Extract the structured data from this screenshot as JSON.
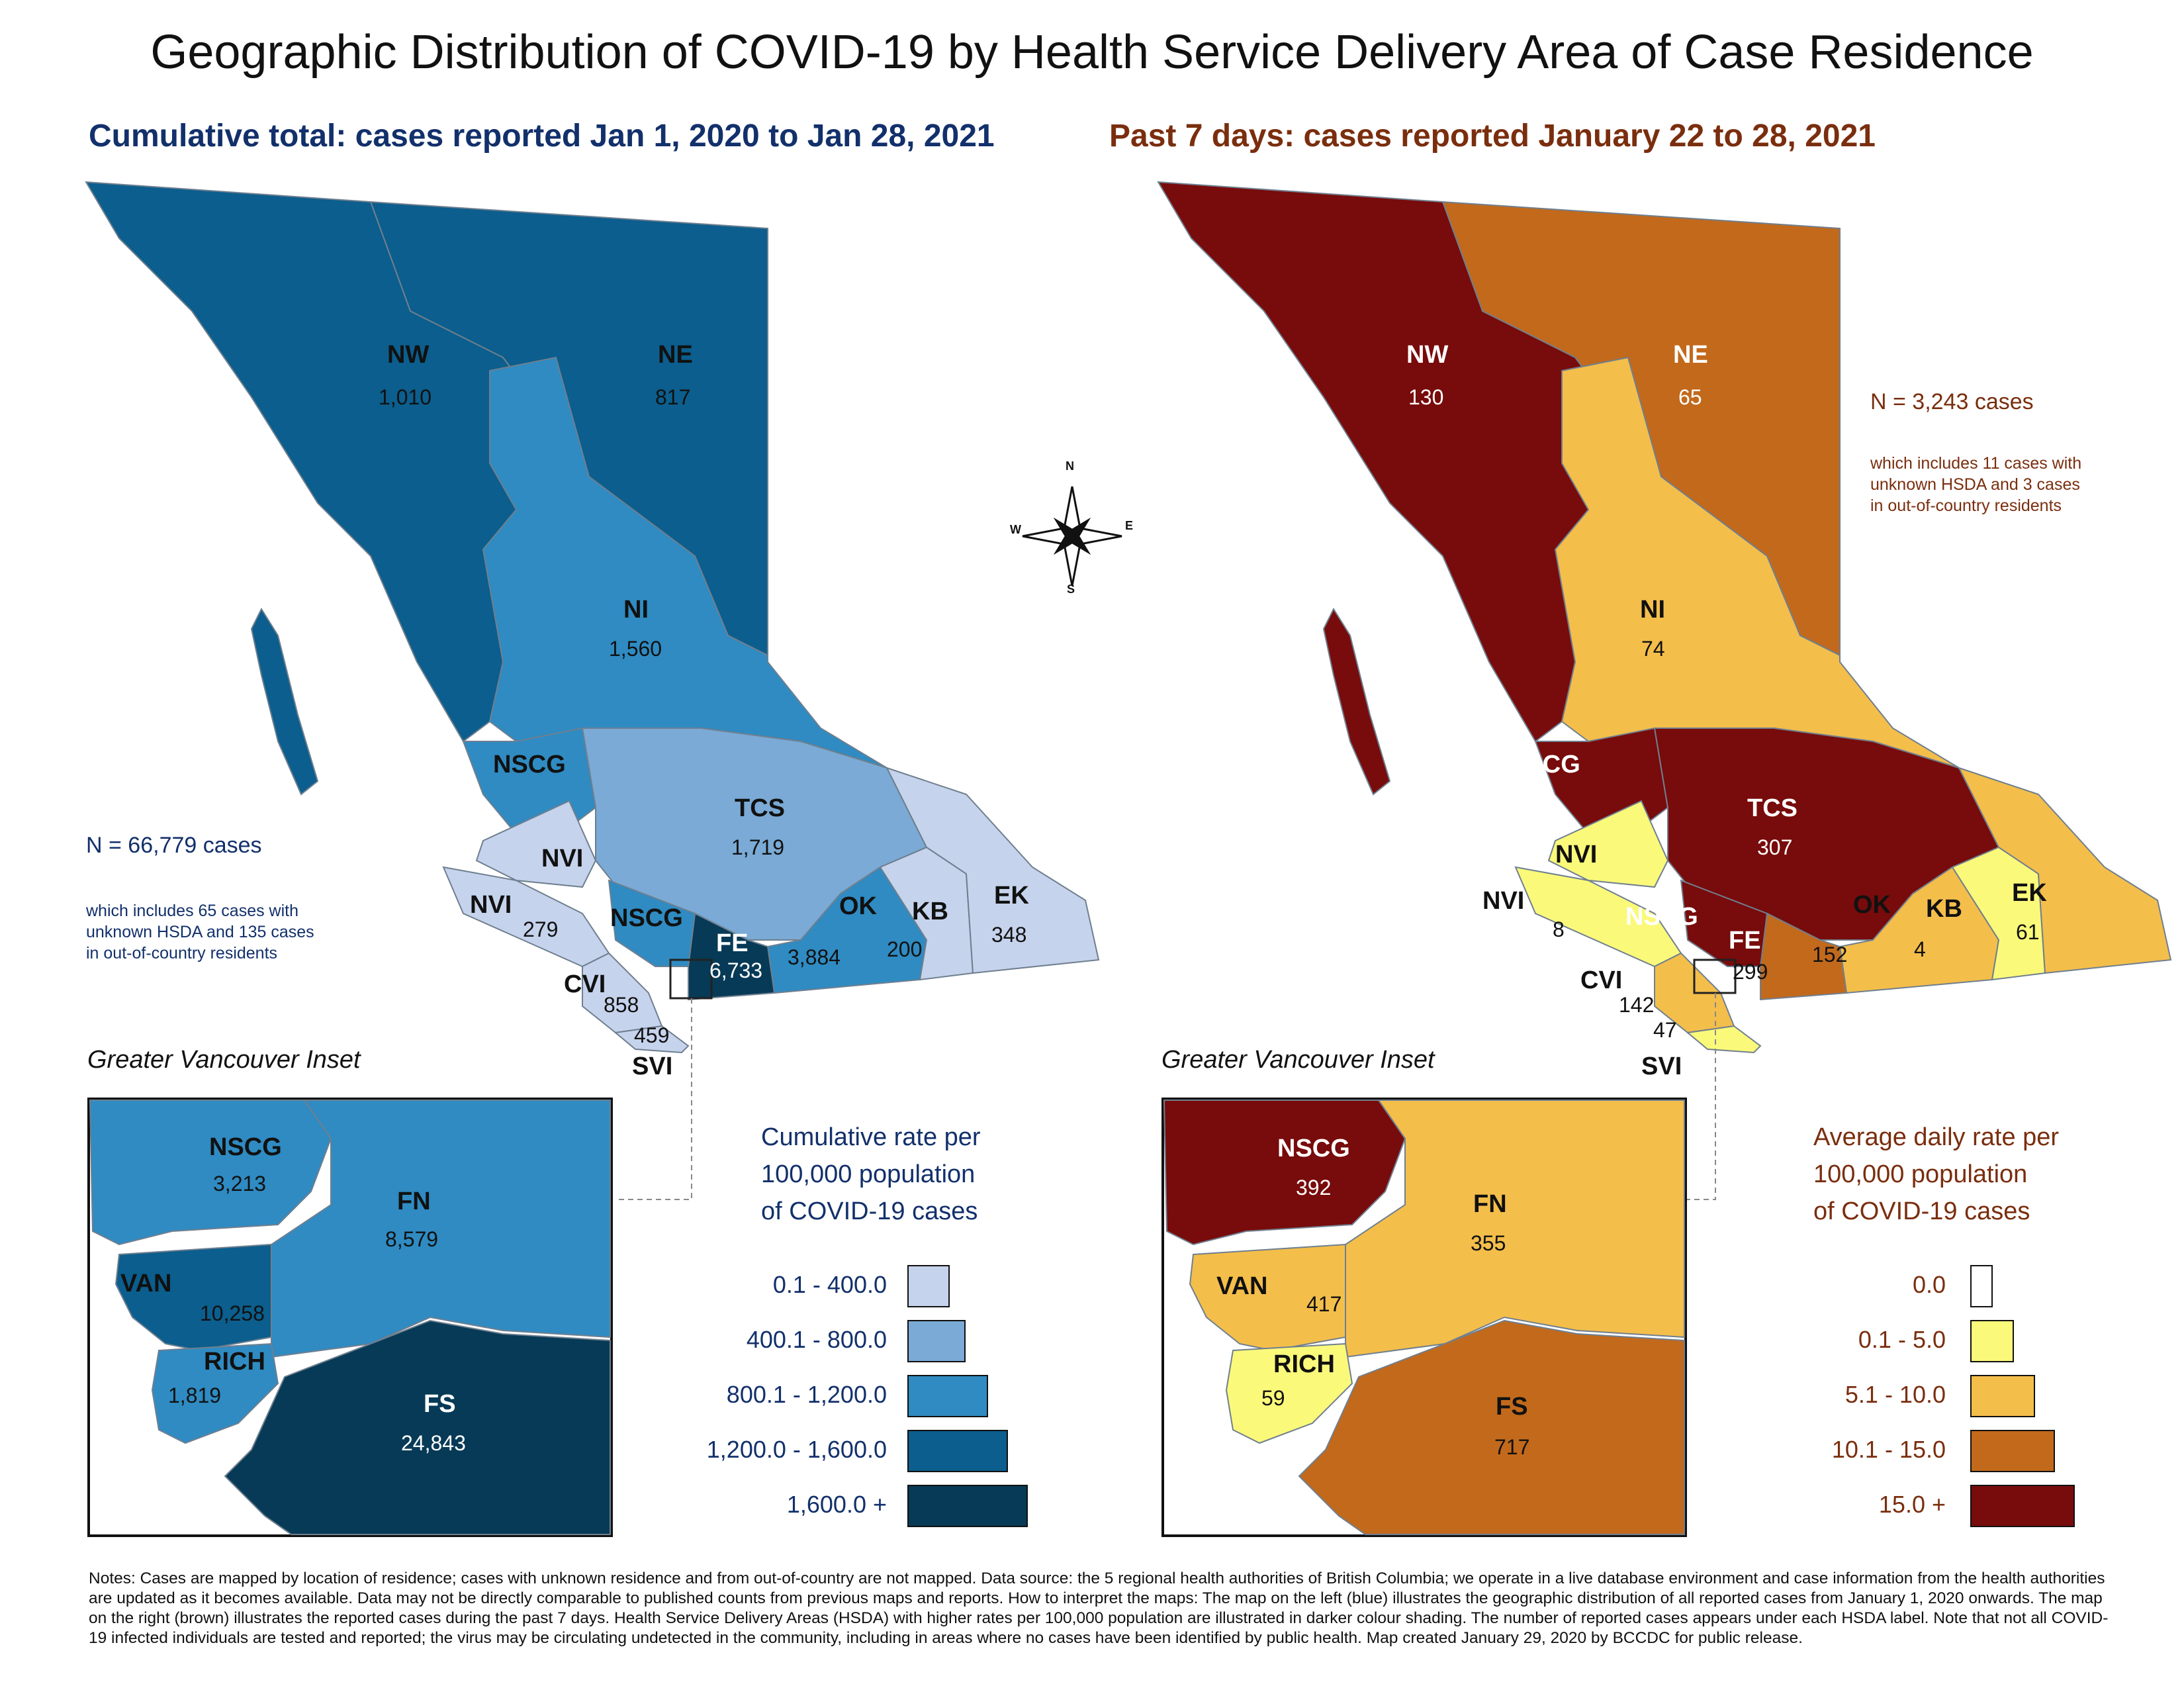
{
  "title": "Geographic Distribution of COVID-19 by Health Service Delivery Area of Case Residence",
  "left_map": {
    "subtitle": "Cumulative total: cases reported Jan 1, 2020 to Jan 28, 2021",
    "total": "N = 66,779 cases",
    "note": [
      "which includes 65 cases with",
      "unknown HSDA and 135 cases",
      "in out-of-country residents"
    ],
    "regions": [
      {
        "code": "NW",
        "count": "1,010"
      },
      {
        "code": "NE",
        "count": "817"
      },
      {
        "code": "NI",
        "count": "1,560"
      },
      {
        "code": "NSCG",
        "count": ""
      },
      {
        "code": "TCS",
        "count": "1,719"
      },
      {
        "code": "NVI",
        "count": ""
      },
      {
        "code": "NVI",
        "count": "279"
      },
      {
        "code": "NSCG",
        "count": ""
      },
      {
        "code": "FE",
        "count": "6,733"
      },
      {
        "code": "OK",
        "count": "3,884"
      },
      {
        "code": "KB",
        "count": "200"
      },
      {
        "code": "EK",
        "count": "348"
      },
      {
        "code": "CVI",
        "count": "858"
      },
      {
        "code": "SVI",
        "count": "459"
      }
    ],
    "inset_title": "Greater Vancouver Inset",
    "inset_regions": [
      {
        "code": "NSCG",
        "count": "3,213"
      },
      {
        "code": "FN",
        "count": "8,579"
      },
      {
        "code": "VAN",
        "count": "10,258"
      },
      {
        "code": "RICH",
        "count": "1,819"
      },
      {
        "code": "FS",
        "count": "24,843"
      }
    ],
    "legend_title": [
      "Cumulative rate per",
      "100,000 population",
      "of COVID-19 cases"
    ],
    "legend": [
      {
        "label": "0.1 - 400.0",
        "color": "#c6d3ec"
      },
      {
        "label": "400.1 - 800.0",
        "color": "#7aaad5"
      },
      {
        "label": "800.1 - 1,200.0",
        "color": "#2f8bc2"
      },
      {
        "label": "1,200.0 - 1,600.0",
        "color": "#0b5e8d"
      },
      {
        "label": "1,600.0 +",
        "color": "#073a56"
      }
    ]
  },
  "right_map": {
    "subtitle": "Past 7 days: cases reported January 22 to 28, 2021",
    "total": "N = 3,243 cases",
    "note": [
      "which includes 11 cases with",
      "unknown HSDA and 3 cases",
      "in out-of-country residents"
    ],
    "regions": [
      {
        "code": "NW",
        "count": "130"
      },
      {
        "code": "NE",
        "count": "65"
      },
      {
        "code": "NI",
        "count": "74"
      },
      {
        "code": "NSCG",
        "count": ""
      },
      {
        "code": "TCS",
        "count": "307"
      },
      {
        "code": "NVI",
        "count": ""
      },
      {
        "code": "NVI",
        "count": "8"
      },
      {
        "code": "NSCG",
        "count": ""
      },
      {
        "code": "FE",
        "count": "299"
      },
      {
        "code": "OK",
        "count": "152"
      },
      {
        "code": "KB",
        "count": "4"
      },
      {
        "code": "EK",
        "count": "61"
      },
      {
        "code": "CVI",
        "count": "142"
      },
      {
        "code": "SVI",
        "count": "47"
      }
    ],
    "inset_title": "Greater Vancouver Inset",
    "inset_regions": [
      {
        "code": "NSCG",
        "count": "392"
      },
      {
        "code": "FN",
        "count": "355"
      },
      {
        "code": "VAN",
        "count": "417"
      },
      {
        "code": "RICH",
        "count": "59"
      },
      {
        "code": "FS",
        "count": "717"
      }
    ],
    "legend_title": [
      "Average daily rate per",
      "100,000 population",
      "of COVID-19 cases"
    ],
    "legend": [
      {
        "label": "0.0",
        "color": "#ffffff"
      },
      {
        "label": "0.1 - 5.0",
        "color": "#fbf97a"
      },
      {
        "label": "5.1 - 10.0",
        "color": "#f4be4b"
      },
      {
        "label": "10.1 - 15.0",
        "color": "#c2691c"
      },
      {
        "label": "15.0 +",
        "color": "#780b0b"
      }
    ]
  },
  "compass": {
    "n": "N",
    "s": "S",
    "e": "E",
    "w": "W"
  },
  "notes": "Notes: Cases are mapped by location of residence; cases with unknown residence and from out-of-country are not mapped. Data source: the 5 regional health authorities of British Columbia; we operate in a live database environment and case information from the health authorities are updated as it becomes available. Data may not be directly comparable to published counts from previous maps and reports. How to interpret the maps: The map on the left (blue) illustrates the geographic distribution of all reported cases from January 1, 2020 onwards. The map on the right (brown) illustrates the reported cases during the past 7 days. Health Service Delivery Areas (HSDA) with higher rates per 100,000 population are illustrated in darker colour shading. The number of reported cases appears under each HSDA label. Note that not all COVID-19 infected individuals are tested and reported; the virus may be circulating undetected in the community, including in areas where no cases have been identified by public health. Map created January 29, 2020 by BCCDC for public release."
}
